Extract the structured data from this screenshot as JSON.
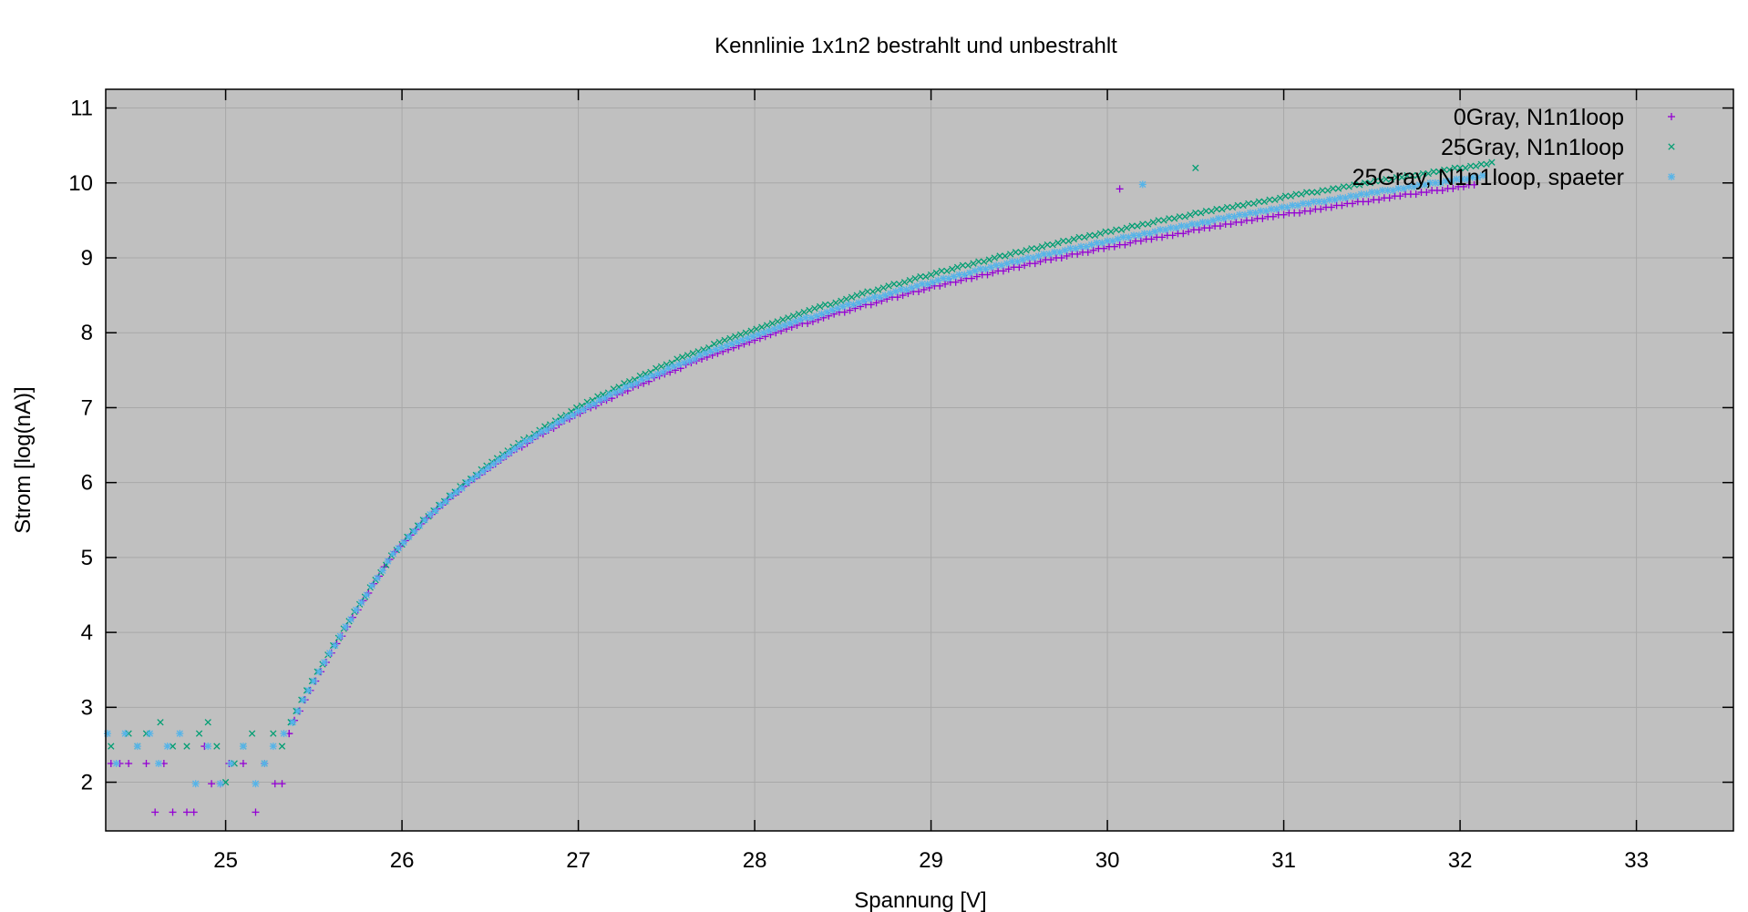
{
  "chart_data": {
    "type": "scatter",
    "title": "Kennlinie 1x1n2 bestrahlt und unbestrahlt",
    "xlabel": "Spannung [V]",
    "ylabel": "Strom [log(nA)]",
    "xlim": [
      24.32,
      33.55
    ],
    "ylim": [
      1.35,
      11.25
    ],
    "xticks": [
      25,
      26,
      27,
      28,
      29,
      30,
      31,
      32,
      33
    ],
    "yticks": [
      2,
      3,
      4,
      5,
      6,
      7,
      8,
      9,
      10,
      11
    ],
    "grid": true,
    "legend_position": "top-right",
    "background": "#c0c0c0",
    "series": [
      {
        "name": "0Gray, N1n1loop",
        "marker": "plus",
        "color": "#9400d3",
        "points": [
          [
            24.35,
            2.25
          ],
          [
            24.4,
            2.25
          ],
          [
            24.45,
            2.25
          ],
          [
            24.55,
            2.25
          ],
          [
            24.6,
            1.6
          ],
          [
            24.65,
            2.25
          ],
          [
            24.7,
            1.6
          ],
          [
            24.78,
            1.6
          ],
          [
            24.82,
            1.6
          ],
          [
            24.88,
            2.48
          ],
          [
            24.92,
            1.98
          ],
          [
            24.97,
            1.98
          ],
          [
            25.02,
            2.25
          ],
          [
            25.1,
            2.25
          ],
          [
            25.17,
            1.6
          ],
          [
            25.22,
            2.25
          ],
          [
            25.28,
            1.98
          ],
          [
            25.32,
            1.98
          ],
          [
            25.36,
            2.65
          ]
        ],
        "curve": {
          "x_start": 25.36,
          "x_end": 32.1,
          "y_start": 2.65,
          "y_end": 9.98,
          "step": 0.03
        },
        "outliers": [
          [
            30.07,
            9.92
          ]
        ]
      },
      {
        "name": "25Gray, N1n1loop",
        "marker": "cross",
        "color": "#009e73",
        "points": [
          [
            24.35,
            2.48
          ],
          [
            24.45,
            2.65
          ],
          [
            24.5,
            2.48
          ],
          [
            24.55,
            2.65
          ],
          [
            24.63,
            2.8
          ],
          [
            24.7,
            2.48
          ],
          [
            24.78,
            2.48
          ],
          [
            24.85,
            2.65
          ],
          [
            24.9,
            2.8
          ],
          [
            24.95,
            2.48
          ],
          [
            25.0,
            2.0
          ],
          [
            25.05,
            2.25
          ],
          [
            25.1,
            2.48
          ],
          [
            25.15,
            2.65
          ],
          [
            25.22,
            2.25
          ],
          [
            25.27,
            2.65
          ],
          [
            25.32,
            2.48
          ],
          [
            25.37,
            2.8
          ]
        ],
        "curve": {
          "x_start": 25.37,
          "x_end": 32.2,
          "y_start": 2.8,
          "y_end": 10.27,
          "step": 0.03
        },
        "outliers": [
          [
            30.5,
            10.2
          ]
        ]
      },
      {
        "name": "25Gray, N1n1loop, spaeter",
        "marker": "asterisk",
        "color": "#56b4e9",
        "points": [
          [
            24.33,
            2.65
          ],
          [
            24.38,
            2.25
          ],
          [
            24.43,
            2.65
          ],
          [
            24.5,
            2.48
          ],
          [
            24.57,
            2.65
          ],
          [
            24.62,
            2.25
          ],
          [
            24.67,
            2.48
          ],
          [
            24.74,
            2.65
          ],
          [
            24.83,
            1.98
          ],
          [
            24.9,
            2.48
          ],
          [
            24.97,
            1.98
          ],
          [
            25.03,
            2.25
          ],
          [
            25.1,
            2.48
          ],
          [
            25.17,
            1.98
          ],
          [
            25.22,
            2.25
          ],
          [
            25.27,
            2.48
          ],
          [
            25.33,
            2.65
          ],
          [
            25.38,
            2.8
          ]
        ],
        "curve": {
          "x_start": 25.38,
          "x_end": 32.15,
          "y_start": 2.8,
          "y_end": 10.1,
          "step": 0.03
        },
        "outliers": [
          [
            30.2,
            9.98
          ]
        ]
      }
    ]
  }
}
